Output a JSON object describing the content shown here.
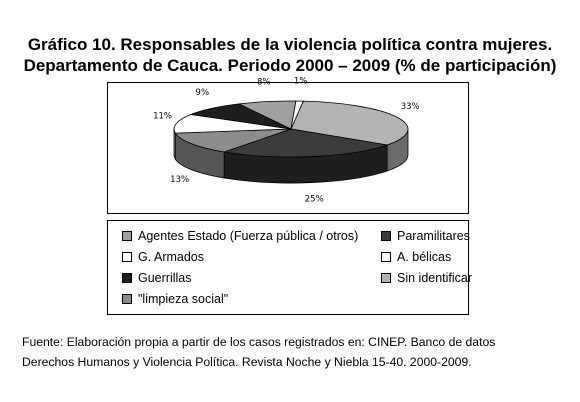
{
  "title_line1": "Gráfico 10. Responsables de la violencia política contra mujeres.",
  "title_line2": "Departamento de Cauca. Periodo 2000 – 2009 (% de participación)",
  "chart_data": {
    "type": "pie",
    "title": "Gráfico 10. Responsables de la violencia política contra mujeres. Departamento de Cauca. Periodo 2000 – 2009 (% de participación)",
    "slices": [
      {
        "name": "Sin identificar",
        "value": 33,
        "label": "33%",
        "color": "#b3b3b3",
        "side": "#6b6b6b"
      },
      {
        "name": "Paramilitares",
        "value": 25,
        "label": "25%",
        "color": "#3c3c3c",
        "side": "#1e1e1e"
      },
      {
        "name": "\"limpieza social\"",
        "value": 13,
        "label": "13%",
        "color": "#8c8c8c",
        "side": "#555555"
      },
      {
        "name": "A. bélicas",
        "value": 11,
        "label": "11%",
        "color": "#ffffff",
        "side": "#bfbfbf"
      },
      {
        "name": "Guerrillas",
        "value": 9,
        "label": "9%",
        "color": "#1e1e1e",
        "side": "#0a0a0a"
      },
      {
        "name": "Agentes  Estado (Fuerza pública / otros)",
        "value": 8,
        "label": "8%",
        "color": "#a0a0a0",
        "side": "#606060"
      },
      {
        "name": "G. Armados",
        "value": 1,
        "label": "1%",
        "color": "#ffffff",
        "side": "#bfbfbf"
      }
    ],
    "legend": [
      {
        "label": "Agentes  Estado (Fuerza pública / otros)",
        "color": "#a0a0a0"
      },
      {
        "label": "Paramilitares",
        "color": "#3c3c3c"
      },
      {
        "label": "G. Armados",
        "color": "#ffffff"
      },
      {
        "label": "A. bélicas",
        "color": "#ffffff"
      },
      {
        "label": "Guerrillas",
        "color": "#1e1e1e"
      },
      {
        "label": "Sin identificar",
        "color": "#b3b3b3"
      },
      {
        "label": "\"limpieza social\"",
        "color": "#8c8c8c"
      }
    ]
  },
  "source_line1": "Fuente: Elaboración propia a partir de los casos registrados en: CINEP. Banco de datos",
  "source_line2": "Derechos Humanos y Violencia Política. Revista Noche y  Niebla  15-40. 2000-2009."
}
